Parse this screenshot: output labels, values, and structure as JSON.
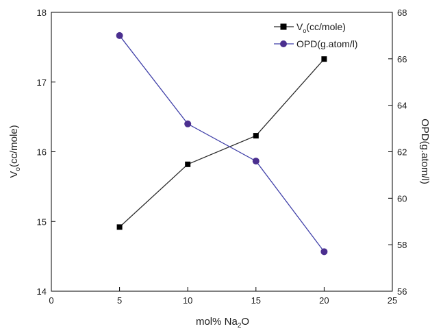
{
  "chart_data": {
    "type": "line",
    "title": "",
    "x": [
      5,
      10,
      15,
      20
    ],
    "xlabel": {
      "main": "mol% Na",
      "sub": "2",
      "tail": "O"
    },
    "xlim": [
      0,
      25
    ],
    "xticks": [
      0,
      5,
      10,
      15,
      20,
      25
    ],
    "ylabel_left": {
      "main": "V",
      "sub": "o",
      "tail": "(cc/mole)"
    },
    "ylim_left": [
      14,
      18
    ],
    "yticks_left": [
      14,
      15,
      16,
      17,
      18
    ],
    "ylabel_right": "OPD(g.atom/l)",
    "ylim_right": [
      56,
      68
    ],
    "yticks_right": [
      56,
      58,
      60,
      62,
      64,
      66,
      68
    ],
    "grid": false,
    "legend_position": "top-right",
    "series": [
      {
        "name": {
          "main": "V",
          "sub": "o",
          "tail": "(cc/mole)"
        },
        "axis": "left",
        "values": [
          14.92,
          15.82,
          16.23,
          17.33
        ],
        "marker": "square",
        "color": "#000000",
        "line_color": "#2b2b2b"
      },
      {
        "name": "OPD(g.atom/l)",
        "axis": "right",
        "values": [
          67.0,
          63.2,
          61.6,
          57.7
        ],
        "marker": "circle",
        "color": "#4b2f8f",
        "line_color": "#3f3fa8"
      }
    ]
  }
}
